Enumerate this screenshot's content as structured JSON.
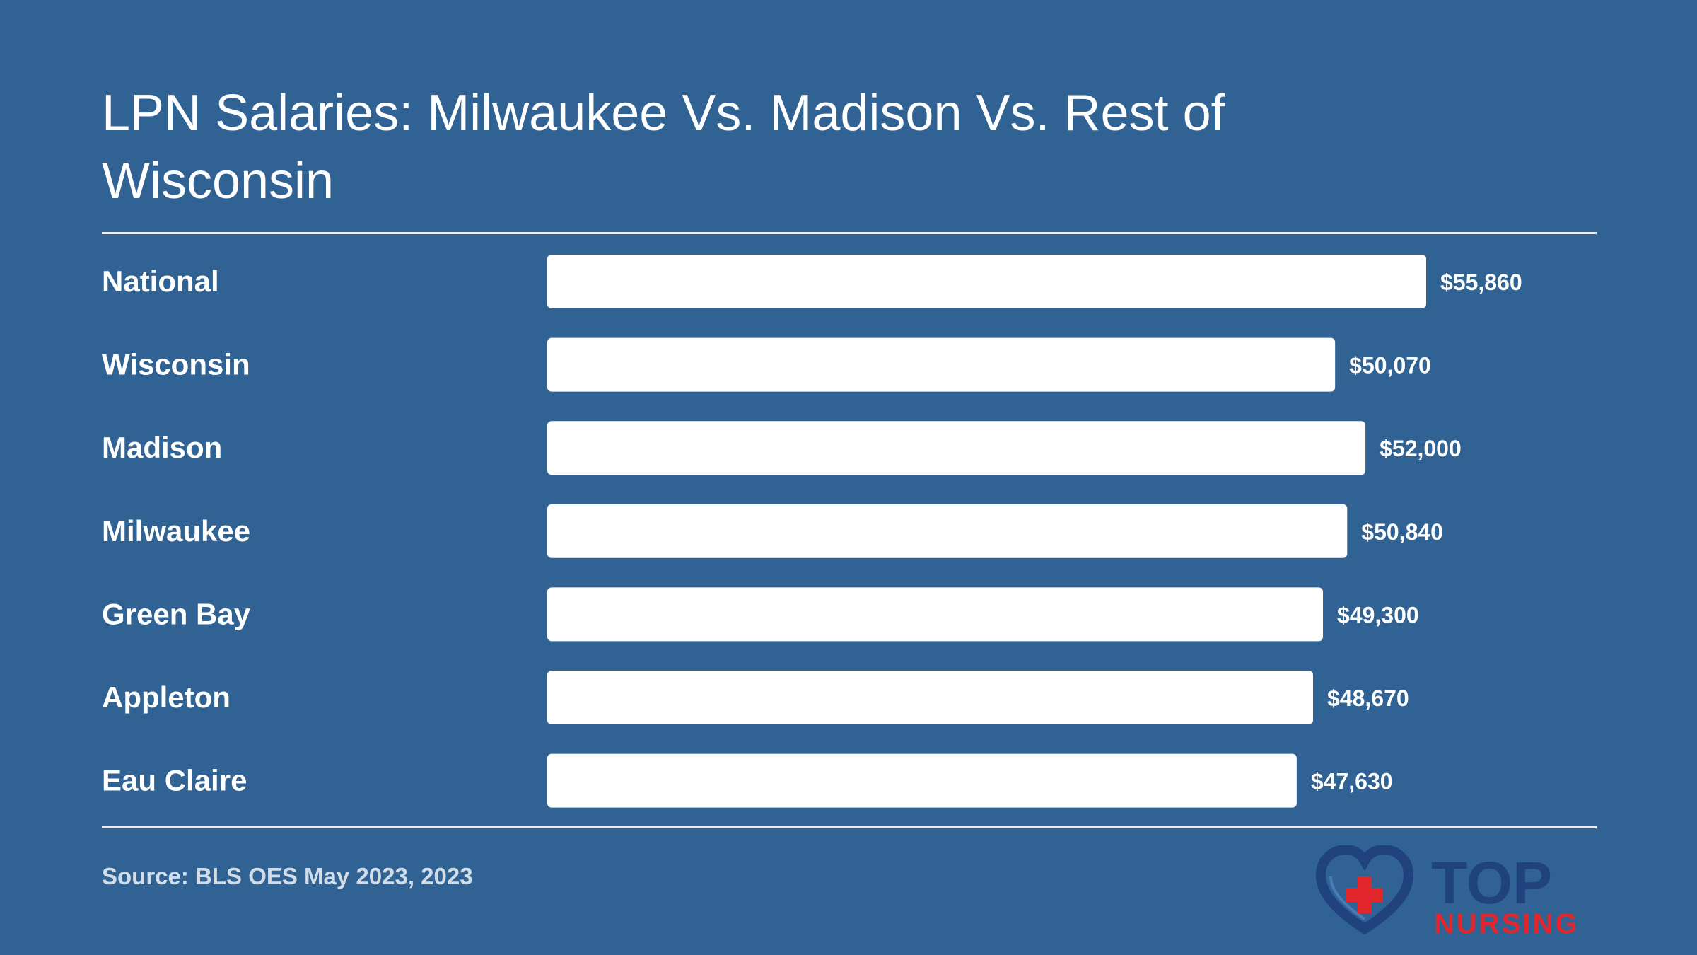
{
  "colors": {
    "background": "#306394",
    "bar": "#ffffff",
    "text": "#ffffff",
    "source_text": "#d3dde8",
    "logo_navy": "#20427d",
    "logo_red": "#e1262c"
  },
  "chart_data": {
    "type": "bar",
    "orientation": "horizontal",
    "title": "LPN Salaries: Milwaukee Vs. Madison Vs. Rest of Wisconsin",
    "categories": [
      "National",
      "Wisconsin",
      "Madison",
      "Milwaukee",
      "Green Bay",
      "Appleton",
      "Eau Claire"
    ],
    "values": [
      55860,
      50070,
      52000,
      50840,
      49300,
      48670,
      47630
    ],
    "value_labels": [
      "$55,860",
      "$50,070",
      "$52,000",
      "$50,840",
      "$49,300",
      "$48,670",
      "$47,630"
    ],
    "xlim": [
      0,
      63000
    ],
    "grid": false,
    "legend": "none"
  },
  "source": "Source: BLS OES May 2023, 2023",
  "logo": {
    "icon": "heart-cross-icon",
    "text_top": "TOP",
    "text_bottom": "NURSING"
  }
}
